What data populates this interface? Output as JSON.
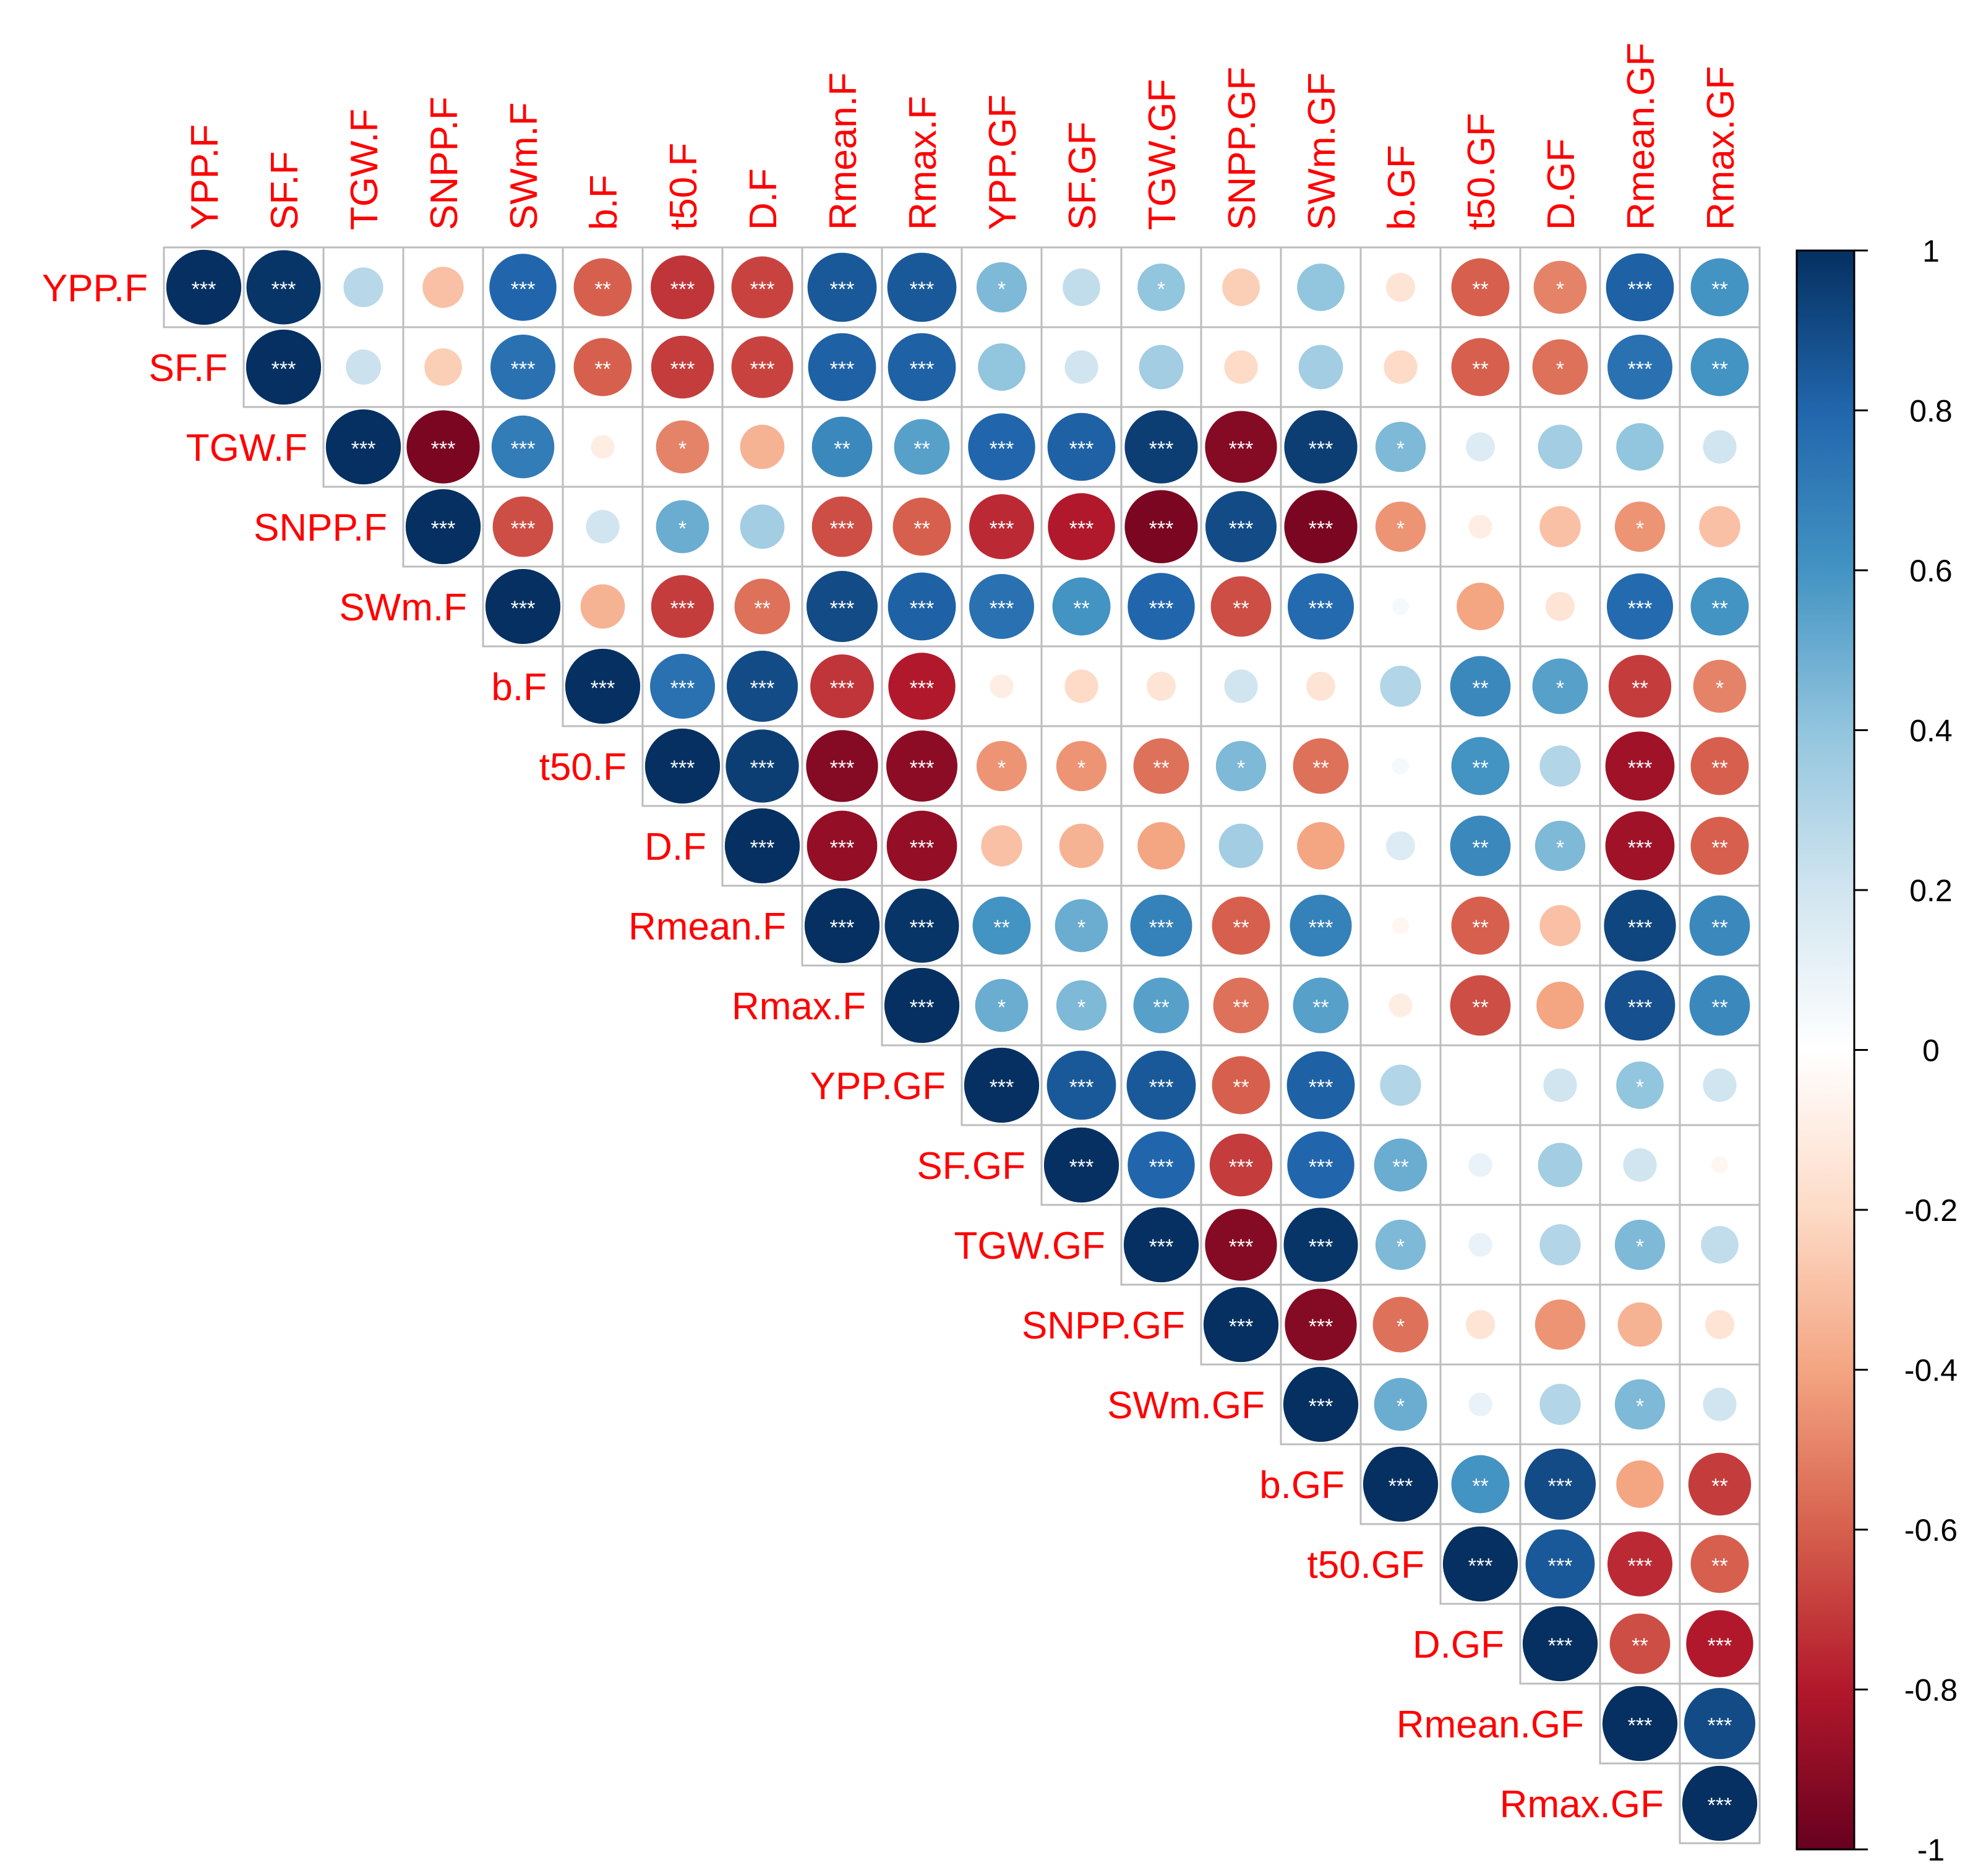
{
  "chart_data": {
    "type": "heatmap",
    "title": "",
    "layout": "upper-triangle correlation matrix, circle size and color encode r",
    "label_color": "#ff0000",
    "variables": [
      "YPP.F",
      "SF.F",
      "TGW.F",
      "SNPP.F",
      "SWm.F",
      "b.F",
      "t50.F",
      "D.F",
      "Rmean.F",
      "Rmax.F",
      "YPP.GF",
      "SF.GF",
      "TGW.GF",
      "SNPP.GF",
      "SWm.GF",
      "b.GF",
      "t50.GF",
      "D.GF",
      "Rmean.GF",
      "Rmax.GF"
    ],
    "values": [
      [
        1,
        0.98,
        0.28,
        -0.3,
        0.8,
        -0.6,
        -0.72,
        -0.68,
        0.85,
        0.85,
        0.45,
        0.25,
        0.4,
        -0.25,
        0.4,
        -0.15,
        -0.6,
        -0.5,
        0.82,
        0.6
      ],
      [
        null,
        1,
        0.22,
        -0.25,
        0.75,
        -0.6,
        -0.7,
        -0.68,
        0.82,
        0.82,
        0.4,
        0.2,
        0.35,
        -0.2,
        0.35,
        -0.2,
        -0.6,
        -0.55,
        0.75,
        0.6
      ],
      [
        null,
        null,
        1,
        -0.95,
        0.7,
        -0.1,
        -0.5,
        -0.35,
        0.65,
        0.55,
        0.8,
        0.82,
        0.95,
        -0.92,
        0.95,
        0.45,
        0.15,
        0.35,
        0.4,
        0.2
      ],
      [
        null,
        null,
        null,
        1,
        -0.65,
        0.2,
        0.5,
        0.35,
        -0.65,
        -0.6,
        -0.75,
        -0.8,
        -0.95,
        0.9,
        -0.95,
        -0.45,
        -0.1,
        -0.3,
        -0.45,
        -0.3
      ],
      [
        null,
        null,
        null,
        null,
        1,
        -0.35,
        -0.7,
        -0.55,
        0.9,
        0.82,
        0.75,
        0.6,
        0.8,
        -0.65,
        0.78,
        0.05,
        -0.4,
        -0.15,
        0.78,
        0.6
      ],
      [
        null,
        null,
        null,
        null,
        null,
        1,
        0.75,
        0.9,
        -0.72,
        -0.8,
        -0.1,
        -0.2,
        -0.15,
        0.2,
        -0.15,
        0.3,
        0.65,
        0.55,
        -0.7,
        -0.5
      ],
      [
        null,
        null,
        null,
        null,
        null,
        null,
        1,
        0.95,
        -0.92,
        -0.9,
        -0.45,
        -0.45,
        -0.55,
        0.45,
        -0.55,
        0.05,
        0.6,
        0.3,
        -0.85,
        -0.6
      ],
      [
        null,
        null,
        null,
        null,
        null,
        null,
        null,
        1,
        -0.88,
        -0.88,
        -0.3,
        -0.35,
        -0.4,
        0.35,
        -0.4,
        0.15,
        0.65,
        0.45,
        -0.85,
        -0.6
      ],
      [
        null,
        null,
        null,
        null,
        null,
        null,
        null,
        null,
        1,
        0.98,
        0.6,
        0.5,
        0.68,
        -0.6,
        0.68,
        -0.05,
        -0.6,
        -0.3,
        0.92,
        0.65
      ],
      [
        null,
        null,
        null,
        null,
        null,
        null,
        null,
        null,
        null,
        1,
        0.5,
        0.45,
        0.55,
        -0.55,
        0.55,
        -0.1,
        -0.65,
        -0.4,
        0.88,
        0.65
      ],
      [
        null,
        null,
        null,
        null,
        null,
        null,
        null,
        null,
        null,
        null,
        1,
        0.85,
        0.85,
        -0.6,
        0.82,
        0.3,
        0,
        0.2,
        0.4,
        0.2
      ],
      [
        null,
        null,
        null,
        null,
        null,
        null,
        null,
        null,
        null,
        null,
        null,
        1,
        0.8,
        -0.7,
        0.8,
        0.5,
        0.1,
        0.35,
        0.2,
        -0.05
      ],
      [
        null,
        null,
        null,
        null,
        null,
        null,
        null,
        null,
        null,
        null,
        null,
        null,
        1,
        -0.92,
        0.98,
        0.45,
        0.1,
        0.3,
        0.45,
        0.25
      ],
      [
        null,
        null,
        null,
        null,
        null,
        null,
        null,
        null,
        null,
        null,
        null,
        null,
        null,
        1,
        -0.92,
        -0.55,
        -0.15,
        -0.45,
        -0.35,
        -0.15
      ],
      [
        null,
        null,
        null,
        null,
        null,
        null,
        null,
        null,
        null,
        null,
        null,
        null,
        null,
        null,
        1,
        0.5,
        0.1,
        0.3,
        0.45,
        0.2
      ],
      [
        null,
        null,
        null,
        null,
        null,
        null,
        null,
        null,
        null,
        null,
        null,
        null,
        null,
        null,
        null,
        1,
        0.6,
        0.9,
        -0.4,
        -0.7
      ],
      [
        null,
        null,
        null,
        null,
        null,
        null,
        null,
        null,
        null,
        null,
        null,
        null,
        null,
        null,
        null,
        null,
        1,
        0.85,
        -0.75,
        -0.6
      ],
      [
        null,
        null,
        null,
        null,
        null,
        null,
        null,
        null,
        null,
        null,
        null,
        null,
        null,
        null,
        null,
        null,
        null,
        1,
        -0.65,
        -0.8
      ],
      [
        null,
        null,
        null,
        null,
        null,
        null,
        null,
        null,
        null,
        null,
        null,
        null,
        null,
        null,
        null,
        null,
        null,
        null,
        1,
        0.9
      ],
      [
        null,
        null,
        null,
        null,
        null,
        null,
        null,
        null,
        null,
        null,
        null,
        null,
        null,
        null,
        null,
        null,
        null,
        null,
        null,
        1
      ]
    ],
    "significance": [
      [
        "***",
        "***",
        "",
        "",
        "***",
        "**",
        "***",
        "***",
        "***",
        "***",
        "*",
        "",
        "*",
        "",
        "",
        "",
        "**",
        "*",
        "***",
        "**"
      ],
      [
        null,
        "***",
        "",
        "",
        "***",
        "**",
        "***",
        "***",
        "***",
        "***",
        "",
        "",
        "",
        "",
        "",
        "",
        "**",
        "*",
        "***",
        "**"
      ],
      [
        null,
        null,
        "***",
        "***",
        "***",
        "",
        "*",
        "",
        "**",
        "**",
        "***",
        "***",
        "***",
        "***",
        "***",
        "*",
        "",
        "",
        "",
        ""
      ],
      [
        null,
        null,
        null,
        "***",
        "***",
        "",
        "*",
        "",
        "***",
        "**",
        "***",
        "***",
        "***",
        "***",
        "***",
        "*",
        "",
        "",
        "*",
        ""
      ],
      [
        null,
        null,
        null,
        null,
        "***",
        "",
        "***",
        "**",
        "***",
        "***",
        "***",
        "**",
        "***",
        "**",
        "***",
        "",
        "",
        "",
        "***",
        "**"
      ],
      [
        null,
        null,
        null,
        null,
        null,
        "***",
        "***",
        "***",
        "***",
        "***",
        "",
        "",
        "",
        "",
        "",
        "",
        "**",
        "*",
        "**",
        "*"
      ],
      [
        null,
        null,
        null,
        null,
        null,
        null,
        "***",
        "***",
        "***",
        "***",
        "*",
        "*",
        "**",
        "*",
        "**",
        "",
        "**",
        "",
        "***",
        "**"
      ],
      [
        null,
        null,
        null,
        null,
        null,
        null,
        null,
        "***",
        "***",
        "***",
        "",
        "",
        "",
        "",
        "",
        "",
        "**",
        "*",
        "***",
        "**"
      ],
      [
        null,
        null,
        null,
        null,
        null,
        null,
        null,
        null,
        "***",
        "***",
        "**",
        "*",
        "***",
        "**",
        "***",
        "",
        "**",
        "",
        "***",
        "**"
      ],
      [
        null,
        null,
        null,
        null,
        null,
        null,
        null,
        null,
        null,
        "***",
        "*",
        "*",
        "**",
        "**",
        "**",
        "",
        "**",
        "",
        "***",
        "**"
      ],
      [
        null,
        null,
        null,
        null,
        null,
        null,
        null,
        null,
        null,
        null,
        "***",
        "***",
        "***",
        "**",
        "***",
        "",
        "",
        "",
        "*",
        ""
      ],
      [
        null,
        null,
        null,
        null,
        null,
        null,
        null,
        null,
        null,
        null,
        null,
        "***",
        "***",
        "***",
        "***",
        "**",
        "",
        "",
        "",
        ""
      ],
      [
        null,
        null,
        null,
        null,
        null,
        null,
        null,
        null,
        null,
        null,
        null,
        null,
        "***",
        "***",
        "***",
        "*",
        "",
        "",
        "*",
        ""
      ],
      [
        null,
        null,
        null,
        null,
        null,
        null,
        null,
        null,
        null,
        null,
        null,
        null,
        null,
        "***",
        "***",
        "*",
        "",
        "",
        "",
        ""
      ],
      [
        null,
        null,
        null,
        null,
        null,
        null,
        null,
        null,
        null,
        null,
        null,
        null,
        null,
        null,
        "***",
        "*",
        "",
        "",
        "*",
        ""
      ],
      [
        null,
        null,
        null,
        null,
        null,
        null,
        null,
        null,
        null,
        null,
        null,
        null,
        null,
        null,
        null,
        "***",
        "**",
        "***",
        "",
        "**"
      ],
      [
        null,
        null,
        null,
        null,
        null,
        null,
        null,
        null,
        null,
        null,
        null,
        null,
        null,
        null,
        null,
        null,
        "***",
        "***",
        "***",
        "**"
      ],
      [
        null,
        null,
        null,
        null,
        null,
        null,
        null,
        null,
        null,
        null,
        null,
        null,
        null,
        null,
        null,
        null,
        null,
        "***",
        "**",
        "***"
      ],
      [
        null,
        null,
        null,
        null,
        null,
        null,
        null,
        null,
        null,
        null,
        null,
        null,
        null,
        null,
        null,
        null,
        null,
        null,
        "***",
        "***"
      ],
      [
        null,
        null,
        null,
        null,
        null,
        null,
        null,
        null,
        null,
        null,
        null,
        null,
        null,
        null,
        null,
        null,
        null,
        null,
        null,
        "***"
      ]
    ],
    "color_scale": {
      "min": -1,
      "max": 1,
      "ticks": [
        "1",
        "0.8",
        "0.6",
        "0.4",
        "0.2",
        "0",
        "-0.2",
        "-0.4",
        "-0.6",
        "-0.8",
        "-1"
      ],
      "stops": [
        "#67001F",
        "#B2182B",
        "#D6604D",
        "#F4A582",
        "#FDDBC7",
        "#FFFFFF",
        "#D1E5F0",
        "#92C5DE",
        "#4393C3",
        "#2166AC",
        "#053061"
      ]
    }
  }
}
